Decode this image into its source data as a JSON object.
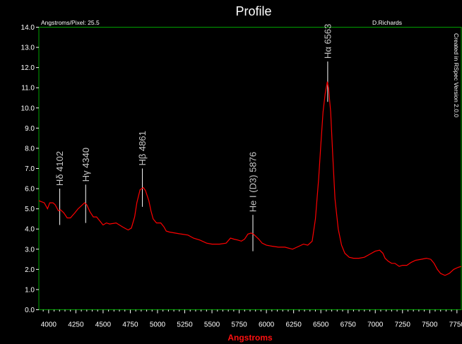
{
  "chart_data": {
    "type": "line",
    "title": "Profile",
    "xlabel": "Angstroms",
    "ylabel": "",
    "header_left": "Angstroms/Pixel: 25.5",
    "header_right": "D.Richards",
    "side_note": "Created in RSpec Version 2.0.0",
    "xlim": [
      3910,
      7790
    ],
    "ylim": [
      0,
      14
    ],
    "x_ticks": [
      4000,
      4250,
      4500,
      4750,
      5000,
      5250,
      5500,
      5750,
      6000,
      6250,
      6500,
      6750,
      7000,
      7250,
      7500,
      7750
    ],
    "y_ticks": [
      0.0,
      1.0,
      2.0,
      3.0,
      4.0,
      5.0,
      6.0,
      7.0,
      8.0,
      9.0,
      10.0,
      11.0,
      12.0,
      13.0,
      14.0
    ],
    "y_tick_labels": [
      "0.0",
      "1.0",
      "2.0",
      "3.0",
      "4.0",
      "5.0",
      "6.0",
      "7.0",
      "8.0",
      "9.0",
      "10.0",
      "11.0",
      "12.0",
      "13.0",
      "14.0"
    ],
    "grid": false,
    "line_color": "#ff0000",
    "frame_color": "#00a000",
    "series": [
      {
        "color": "#ff0000",
        "x": [
          3910,
          3960,
          3990,
          4010,
          4040,
          4060,
          4090,
          4110,
          4140,
          4170,
          4200,
          4240,
          4270,
          4300,
          4330,
          4350,
          4380,
          4410,
          4440,
          4470,
          4500,
          4530,
          4560,
          4620,
          4680,
          4730,
          4760,
          4790,
          4810,
          4840,
          4870,
          4890,
          4920,
          4940,
          4960,
          4990,
          5030,
          5060,
          5080,
          5110,
          5160,
          5220,
          5280,
          5330,
          5390,
          5450,
          5500,
          5570,
          5630,
          5670,
          5700,
          5740,
          5770,
          5800,
          5830,
          5860,
          5880,
          5900,
          5930,
          5960,
          6000,
          6050,
          6110,
          6170,
          6240,
          6300,
          6340,
          6380,
          6420,
          6450,
          6480,
          6500,
          6520,
          6540,
          6560,
          6570,
          6590,
          6610,
          6630,
          6660,
          6690,
          6720,
          6760,
          6800,
          6850,
          6900,
          6950,
          7000,
          7040,
          7070,
          7090,
          7120,
          7150,
          7180,
          7220,
          7250,
          7290,
          7330,
          7370,
          7420,
          7470,
          7510,
          7540,
          7570,
          7600,
          7640,
          7680,
          7720,
          7760,
          7790
        ],
        "y": [
          5.4,
          5.3,
          5.0,
          5.3,
          5.3,
          5.2,
          4.9,
          4.95,
          4.8,
          4.55,
          4.55,
          4.8,
          5.0,
          5.15,
          5.3,
          5.2,
          4.85,
          4.6,
          4.6,
          4.4,
          4.2,
          4.3,
          4.25,
          4.3,
          4.1,
          3.95,
          4.05,
          4.6,
          5.3,
          5.95,
          6.05,
          5.9,
          5.4,
          4.9,
          4.5,
          4.3,
          4.3,
          4.1,
          3.9,
          3.85,
          3.8,
          3.75,
          3.7,
          3.55,
          3.45,
          3.3,
          3.25,
          3.25,
          3.3,
          3.55,
          3.5,
          3.45,
          3.4,
          3.5,
          3.75,
          3.8,
          3.75,
          3.65,
          3.5,
          3.3,
          3.2,
          3.15,
          3.1,
          3.1,
          3.0,
          3.15,
          3.25,
          3.2,
          3.4,
          4.5,
          6.5,
          8.2,
          9.8,
          10.7,
          11.3,
          11.0,
          9.8,
          7.6,
          5.5,
          4.0,
          3.2,
          2.8,
          2.6,
          2.55,
          2.55,
          2.6,
          2.75,
          2.9,
          2.95,
          2.8,
          2.55,
          2.4,
          2.3,
          2.3,
          2.15,
          2.2,
          2.2,
          2.35,
          2.45,
          2.5,
          2.55,
          2.5,
          2.3,
          2.0,
          1.8,
          1.7,
          1.8,
          2.0,
          2.1,
          2.15
        ]
      }
    ],
    "annotations": [
      {
        "text": "Hδ 4102",
        "x": 4102,
        "y_low": 4.2,
        "y_high": 6.0
      },
      {
        "text": "Hγ 4340",
        "x": 4340,
        "y_low": 4.3,
        "y_high": 6.2
      },
      {
        "text": "Hβ 4861",
        "x": 4861,
        "y_low": 5.1,
        "y_high": 7.0
      },
      {
        "text": "He I (D3) 5876",
        "x": 5876,
        "y_low": 2.9,
        "y_high": 4.7
      },
      {
        "text": "Hα 6563",
        "x": 6563,
        "y_low": 10.3,
        "y_high": 12.3
      }
    ]
  }
}
